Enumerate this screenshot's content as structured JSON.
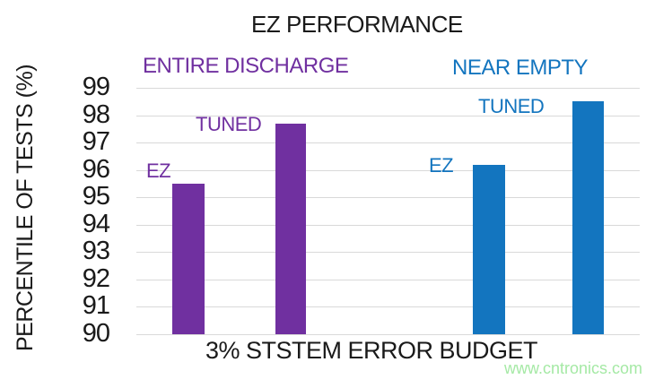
{
  "title": "EZ PERFORMANCE",
  "watermark": "www.cntronics.com",
  "colors": {
    "purple": "#7030A0",
    "blue": "#1375BF",
    "gridline": "#D9D9D9",
    "text": "#1A1A1A",
    "watermark_green": "#A5E9A5"
  },
  "chart_data": {
    "type": "bar",
    "title": "EZ PERFORMANCE",
    "xlabel": "3% STSTEM ERROR BUDGET",
    "ylabel": "PERCENTILE OF TESTS (%)",
    "ylim": [
      90,
      99
    ],
    "yticks": [
      99,
      98,
      97,
      96,
      95,
      94,
      93,
      92,
      91,
      90
    ],
    "grid": true,
    "legend_position": "none",
    "groups": [
      {
        "name": "ENTIRE DISCHARGE",
        "color": "#7030A0",
        "bars": [
          {
            "label": "EZ",
            "value": 95.5
          },
          {
            "label": "TUNED",
            "value": 97.7
          }
        ]
      },
      {
        "name": "NEAR EMPTY",
        "color": "#1375BF",
        "bars": [
          {
            "label": "EZ",
            "value": 96.2
          },
          {
            "label": "TUNED",
            "value": 98.5
          }
        ]
      }
    ]
  }
}
